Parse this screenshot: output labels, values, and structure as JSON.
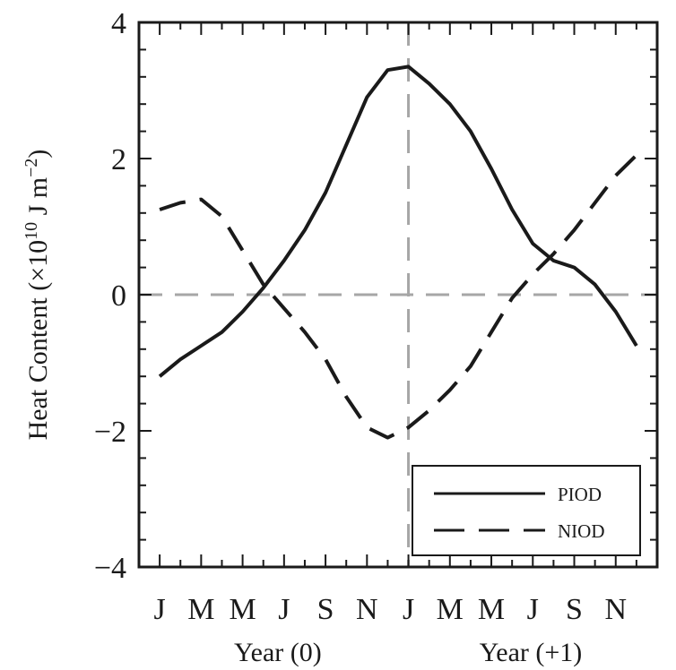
{
  "chart_data": {
    "type": "line",
    "title": "",
    "ylabel": "Heat Content (×10",
    "ylabel_exp": "10",
    "ylabel_unit": " J m",
    "ylabel_unit_exp": "−2",
    "ylabel_close": ")",
    "ylim": [
      -4,
      4
    ],
    "yticks": [
      -4,
      -2,
      0,
      2,
      4
    ],
    "ytick_labels": [
      "−4",
      "−2",
      "0",
      "2",
      "4"
    ],
    "x": [
      1,
      2,
      3,
      4,
      5,
      6,
      7,
      8,
      9,
      10,
      11,
      12,
      13,
      14,
      15,
      16,
      17,
      18,
      19,
      20,
      21,
      22,
      23,
      24
    ],
    "xlim": [
      0,
      25
    ],
    "xtick_positions": [
      1,
      3,
      5,
      7,
      9,
      11,
      13,
      15,
      17,
      19,
      21,
      23
    ],
    "xtick_labels": [
      "J",
      "M",
      "M",
      "J",
      "S",
      "N",
      "J",
      "M",
      "M",
      "J",
      "S",
      "N"
    ],
    "year_labels": [
      {
        "text": "Year (0)",
        "x": 6.7
      },
      {
        "text": "Year (+1)",
        "x": 18.9
      }
    ],
    "reference_lines": {
      "y": 0,
      "x": 13,
      "color": "#a6a6a6"
    },
    "legend_position": "bottom-right",
    "series": [
      {
        "name": "PIOD",
        "style": "solid",
        "color": "#1a1a1a",
        "values": [
          -1.2,
          -0.95,
          -0.75,
          -0.55,
          -0.25,
          0.1,
          0.5,
          0.95,
          1.5,
          2.2,
          2.9,
          3.3,
          3.35,
          3.1,
          2.8,
          2.4,
          1.85,
          1.25,
          0.75,
          0.5,
          0.4,
          0.15,
          -0.25,
          -0.75
        ]
      },
      {
        "name": "NIOD",
        "style": "dashed",
        "color": "#1a1a1a",
        "values": [
          1.25,
          1.35,
          1.4,
          1.15,
          0.65,
          0.15,
          -0.2,
          -0.55,
          -0.95,
          -1.5,
          -1.95,
          -2.1,
          -1.95,
          -1.7,
          -1.4,
          -1.05,
          -0.55,
          -0.05,
          0.3,
          0.6,
          0.95,
          1.35,
          1.75,
          2.05
        ]
      }
    ]
  }
}
